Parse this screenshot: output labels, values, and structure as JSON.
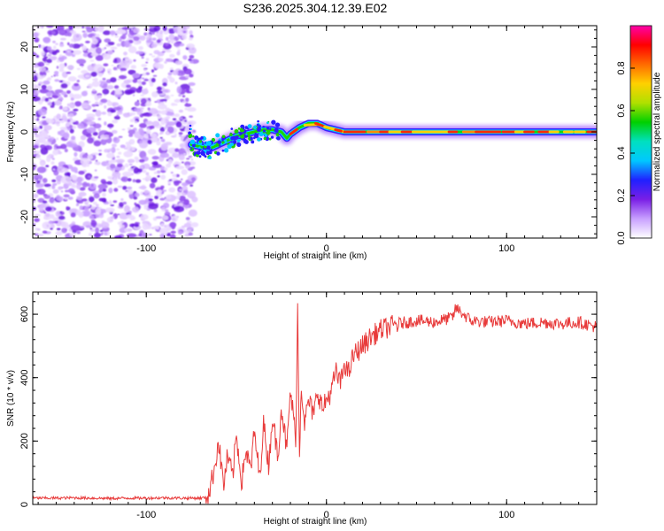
{
  "title": "S236.2025.304.12.39.E02",
  "chart_data": [
    {
      "type": "heatmap",
      "title": "S236.2025.304.12.39.E02",
      "xlabel": "Height of straight line (km)",
      "ylabel": "Frequency (Hz)",
      "xlim": [
        -163,
        150
      ],
      "ylim": [
        -25,
        25
      ],
      "xticks": [
        -100,
        0,
        100
      ],
      "yticks": [
        -20,
        -10,
        0,
        10,
        20
      ],
      "noise_region_x": [
        -163,
        -75
      ],
      "ridge": {
        "x": [
          -75,
          -70,
          -65,
          -60,
          -55,
          -50,
          -45,
          -40,
          -35,
          -30,
          -25,
          -22,
          -20,
          -15,
          -10,
          -5,
          0,
          5,
          10,
          20,
          30,
          40,
          50,
          60,
          70,
          80,
          90,
          100,
          110,
          120,
          130,
          140,
          150
        ],
        "frequency": [
          -3,
          -3.5,
          -4,
          -3,
          -2,
          -1,
          -0.5,
          0,
          0.5,
          0.5,
          0,
          -1.5,
          -0.5,
          1,
          2,
          2,
          1,
          0.5,
          0,
          0,
          0,
          0,
          0,
          0,
          0,
          0,
          0,
          0,
          0,
          0,
          0,
          0,
          0
        ]
      },
      "colorbar": {
        "label": "Normalized spectral amplitude",
        "ticks": [
          0.0,
          0.2,
          0.4,
          0.6,
          0.8
        ],
        "tick_labels": [
          "0.0",
          "0.2",
          "0.4",
          "0.6",
          "0.8"
        ],
        "range": [
          0,
          1
        ],
        "colors": [
          "#ffffff",
          "#c8a0ff",
          "#7a1fe6",
          "#2020ff",
          "#00c8ff",
          "#00e0c0",
          "#00d000",
          "#b0e000",
          "#ffd000",
          "#ff6a00",
          "#ff0000",
          "#ff00aa"
        ]
      }
    },
    {
      "type": "line",
      "xlabel": "Height of straight line (km)",
      "ylabel": "SNR (10 * v/v)",
      "xlim": [
        -163,
        150
      ],
      "ylim": [
        0,
        670
      ],
      "xticks": [
        -100,
        0,
        100
      ],
      "yticks": [
        0,
        200,
        400,
        600
      ],
      "color": "#e83b3b",
      "series": [
        {
          "name": "SNR",
          "x": [
            -163,
            -150,
            -140,
            -130,
            -120,
            -110,
            -100,
            -90,
            -80,
            -70,
            -67,
            -65,
            -62,
            -60,
            -57,
            -55,
            -52,
            -50,
            -47,
            -45,
            -42,
            -40,
            -37,
            -35,
            -32,
            -30,
            -27,
            -25,
            -22,
            -20,
            -17,
            -16,
            -15,
            -14,
            -12,
            -10,
            -7,
            -5,
            -2,
            0,
            3,
            5,
            8,
            10,
            12,
            15,
            20,
            25,
            30,
            35,
            40,
            45,
            50,
            60,
            70,
            72,
            80,
            90,
            100,
            110,
            120,
            130,
            140,
            150
          ],
          "values": [
            20,
            20,
            21,
            20,
            19,
            20,
            20,
            21,
            20,
            20,
            22,
            40,
            120,
            200,
            60,
            150,
            90,
            220,
            70,
            170,
            110,
            230,
            80,
            260,
            120,
            280,
            150,
            310,
            170,
            360,
            210,
            620,
            150,
            380,
            250,
            330,
            280,
            360,
            300,
            330,
            360,
            420,
            380,
            450,
            410,
            470,
            500,
            530,
            550,
            560,
            570,
            575,
            580,
            575,
            590,
            620,
            580,
            575,
            580,
            570,
            575,
            570,
            575,
            560
          ]
        }
      ]
    }
  ]
}
